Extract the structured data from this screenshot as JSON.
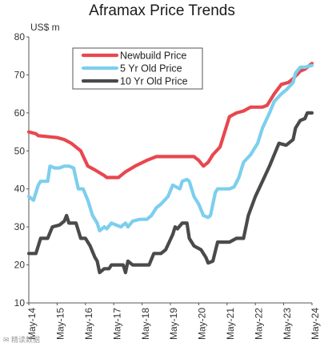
{
  "chart_data": {
    "type": "line",
    "title": "Aframax Price Trends",
    "ylabel": "US$ m",
    "xlabel": "",
    "ylim": [
      10,
      80
    ],
    "yticks": [
      10,
      20,
      30,
      40,
      50,
      60,
      70,
      80
    ],
    "xlim": [
      "May-14",
      "May-24"
    ],
    "xticks": [
      "May-14",
      "May-15",
      "May-16",
      "May-17",
      "May-18",
      "May-19",
      "May-20",
      "May-21",
      "May-22",
      "May-23",
      "May-24"
    ],
    "grid": false,
    "legend": "top-center",
    "series": [
      {
        "name": "Newbuild Price",
        "color": "#e8474f",
        "points": [
          [
            "May-14",
            55
          ],
          [
            "Aug-14",
            54.5
          ],
          [
            "Sep-14",
            54
          ],
          [
            "May-15",
            53.5
          ],
          [
            "Aug-15",
            53
          ],
          [
            "Nov-15",
            52
          ],
          [
            "Mar-16",
            50
          ],
          [
            "Jun-16",
            46
          ],
          [
            "Sep-16",
            45
          ],
          [
            "Jan-17",
            43.5
          ],
          [
            "Feb-17",
            43
          ],
          [
            "Jul-17",
            43
          ],
          [
            "Oct-17",
            44.5
          ],
          [
            "Feb-18",
            46
          ],
          [
            "Jul-18",
            47.5
          ],
          [
            "Nov-18",
            48.5
          ],
          [
            "May-19",
            48.5
          ],
          [
            "Mar-20",
            48.5
          ],
          [
            "May-20",
            47.5
          ],
          [
            "Jul-20",
            46
          ],
          [
            "Sep-20",
            47
          ],
          [
            "Nov-20",
            49
          ],
          [
            "Feb-21",
            51
          ],
          [
            "Apr-21",
            55
          ],
          [
            "Jun-21",
            59
          ],
          [
            "Sep-21",
            60
          ],
          [
            "Dec-21",
            60.5
          ],
          [
            "Mar-22",
            61.5
          ],
          [
            "Aug-22",
            61.5
          ],
          [
            "Oct-22",
            62
          ],
          [
            "Jan-23",
            65
          ],
          [
            "Apr-23",
            67.5
          ],
          [
            "Jul-23",
            68
          ],
          [
            "Sep-23",
            69
          ],
          [
            "Dec-23",
            71
          ],
          [
            "Feb-24",
            71.5
          ],
          [
            "May-24",
            73
          ]
        ]
      },
      {
        "name": "5 Yr Old Price",
        "color": "#7ccfed",
        "points": [
          [
            "May-14",
            38
          ],
          [
            "Jul-14",
            37
          ],
          [
            "Sep-14",
            41
          ],
          [
            "Oct-14",
            42
          ],
          [
            "Jan-15",
            42
          ],
          [
            "Feb-15",
            46
          ],
          [
            "Apr-15",
            45.5
          ],
          [
            "Jun-15",
            45.5
          ],
          [
            "Aug-15",
            46
          ],
          [
            "Oct-15",
            46
          ],
          [
            "Dec-15",
            45.5
          ],
          [
            "Feb-16",
            40
          ],
          [
            "Apr-16",
            40
          ],
          [
            "Jun-16",
            37
          ],
          [
            "Aug-16",
            33
          ],
          [
            "Oct-16",
            31
          ],
          [
            "Nov-16",
            29
          ],
          [
            "Jan-17",
            30
          ],
          [
            "Feb-17",
            29.5
          ],
          [
            "Apr-17",
            31
          ],
          [
            "Jun-17",
            30.5
          ],
          [
            "Aug-17",
            30
          ],
          [
            "Oct-17",
            31
          ],
          [
            "Nov-17",
            30
          ],
          [
            "Jan-18",
            31.5
          ],
          [
            "Apr-18",
            32
          ],
          [
            "Jul-18",
            32
          ],
          [
            "Sep-18",
            33
          ],
          [
            "Nov-18",
            35
          ],
          [
            "Jan-19",
            36
          ],
          [
            "Apr-19",
            38
          ],
          [
            "Jun-19",
            41
          ],
          [
            "Sep-19",
            40
          ],
          [
            "Oct-19",
            42
          ],
          [
            "Dec-19",
            42.5
          ],
          [
            "Jan-20",
            42
          ],
          [
            "Mar-20",
            38
          ],
          [
            "May-20",
            36
          ],
          [
            "Jul-20",
            33
          ],
          [
            "Sep-20",
            32.5
          ],
          [
            "Oct-20",
            33
          ],
          [
            "Dec-20",
            39
          ],
          [
            "Jan-21",
            40
          ],
          [
            "Jun-21",
            40
          ],
          [
            "Aug-21",
            40.5
          ],
          [
            "Oct-21",
            43
          ],
          [
            "Dec-21",
            47
          ],
          [
            "Mar-22",
            49
          ],
          [
            "Jun-22",
            52
          ],
          [
            "Aug-22",
            56
          ],
          [
            "Nov-22",
            60
          ],
          [
            "Jan-23",
            63
          ],
          [
            "Apr-23",
            65
          ],
          [
            "Jun-23",
            66
          ],
          [
            "Sep-23",
            68
          ],
          [
            "Oct-23",
            70.5
          ],
          [
            "Dec-23",
            72
          ],
          [
            "Feb-24",
            72
          ],
          [
            "May-24",
            72.5
          ]
        ]
      },
      {
        "name": "10 Yr Old Price",
        "color": "#4a4a4a",
        "points": [
          [
            "May-14",
            23
          ],
          [
            "Aug-14",
            23
          ],
          [
            "Oct-14",
            27
          ],
          [
            "Jan-15",
            27
          ],
          [
            "Mar-15",
            30
          ],
          [
            "Jun-15",
            30.5
          ],
          [
            "Aug-15",
            31.5
          ],
          [
            "Sep-15",
            33
          ],
          [
            "Oct-15",
            31
          ],
          [
            "Jan-16",
            31
          ],
          [
            "Mar-16",
            27
          ],
          [
            "May-16",
            27
          ],
          [
            "Jul-16",
            25
          ],
          [
            "Sep-16",
            22
          ],
          [
            "Oct-16",
            21
          ],
          [
            "Nov-16",
            18
          ],
          [
            "Jan-17",
            19
          ],
          [
            "Mar-17",
            19
          ],
          [
            "Apr-17",
            20
          ],
          [
            "Jul-17",
            20
          ],
          [
            "Sep-17",
            20
          ],
          [
            "Oct-17",
            18
          ],
          [
            "Nov-17",
            21
          ],
          [
            "Jan-18",
            20
          ],
          [
            "Apr-18",
            20
          ],
          [
            "Jun-18",
            20
          ],
          [
            "Aug-18",
            20
          ],
          [
            "Oct-18",
            23
          ],
          [
            "Jan-19",
            23
          ],
          [
            "Mar-19",
            24
          ],
          [
            "Jun-19",
            28
          ],
          [
            "Jul-19",
            30
          ],
          [
            "Aug-19",
            29.5
          ],
          [
            "Oct-19",
            31
          ],
          [
            "Dec-19",
            31
          ],
          [
            "Jan-20",
            27
          ],
          [
            "Mar-20",
            25
          ],
          [
            "Jun-20",
            24
          ],
          [
            "Aug-20",
            22
          ],
          [
            "Sep-20",
            20.5
          ],
          [
            "Nov-20",
            21
          ],
          [
            "Jan-21",
            26
          ],
          [
            "Jun-21",
            26
          ],
          [
            "Sep-21",
            27
          ],
          [
            "Dec-21",
            27
          ],
          [
            "Feb-22",
            33
          ],
          [
            "May-22",
            38
          ],
          [
            "Aug-22",
            42
          ],
          [
            "Nov-22",
            46
          ],
          [
            "Jan-23",
            49
          ],
          [
            "Mar-23",
            52
          ],
          [
            "Jun-23",
            51.5
          ],
          [
            "Sep-23",
            53
          ],
          [
            "Oct-23",
            56
          ],
          [
            "Dec-23",
            58
          ],
          [
            "Feb-24",
            58.5
          ],
          [
            "Mar-24",
            60
          ],
          [
            "May-24",
            60
          ]
        ]
      }
    ]
  },
  "watermark": "✉ 精读数据"
}
